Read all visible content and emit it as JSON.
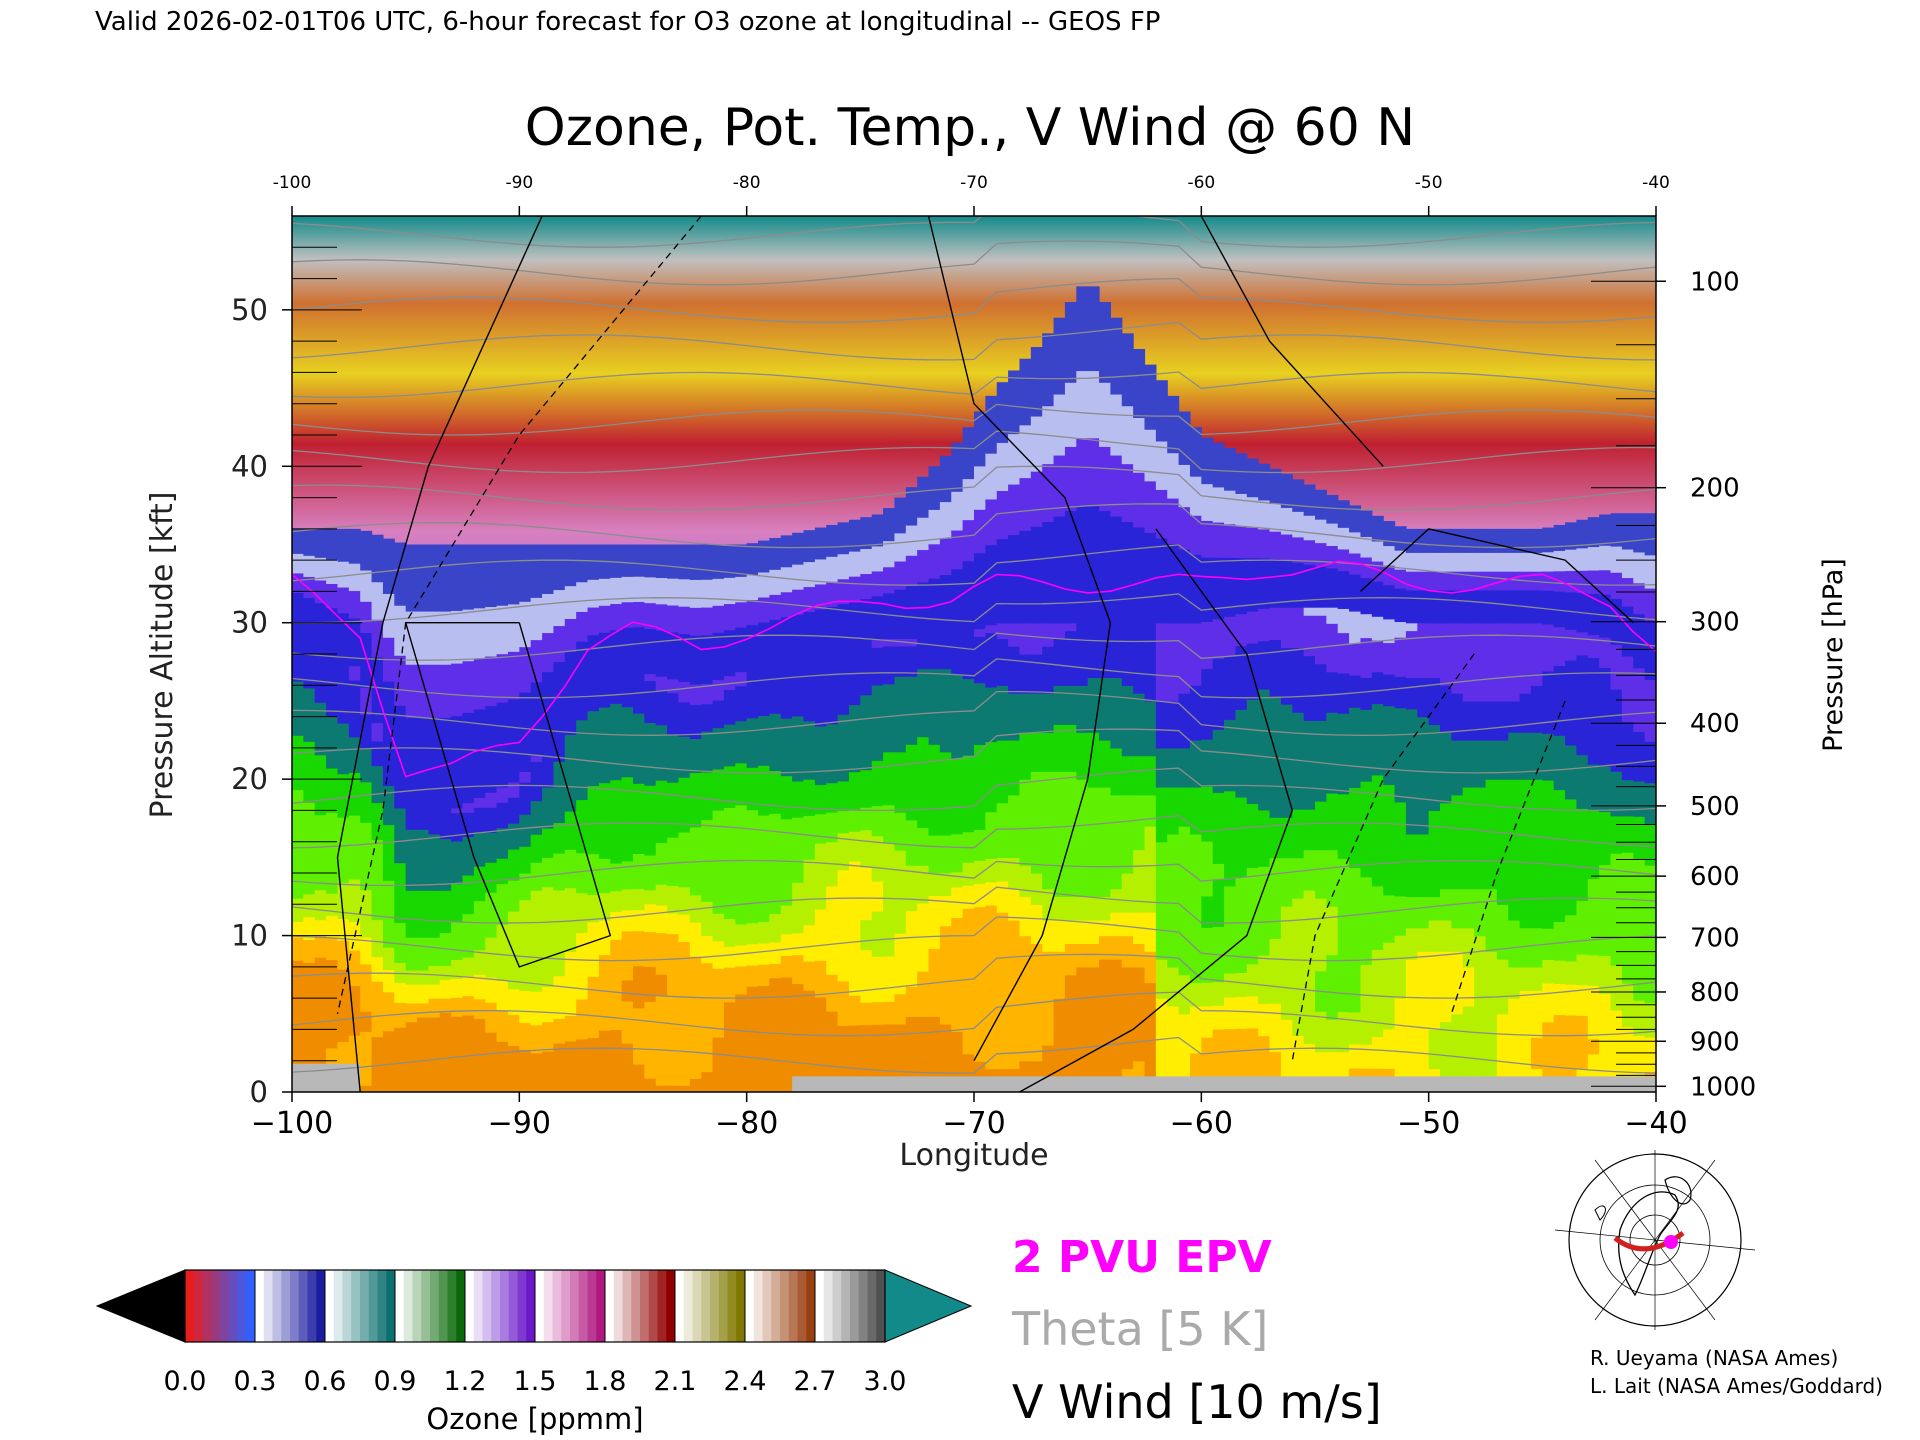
{
  "header": {
    "valid_line": "Valid 2026-02-01T06 UTC, 6-hour forecast for O3 ozone at longitudinal -- GEOS FP"
  },
  "chart_data": {
    "type": "heatmap",
    "title": "Ozone, Pot. Temp., V Wind @ 60 N",
    "xlabel": "Longitude",
    "ylabel": "Pressure Altitude [kft]",
    "y2label": "Pressure [hPa]",
    "xlim": [
      -100,
      -40
    ],
    "ylim": [
      0,
      56
    ],
    "x_ticks": [
      "−100",
      "−90",
      "−80",
      "−70",
      "−60",
      "−50",
      "−40"
    ],
    "x_ticks_top": [
      "-100",
      "-90",
      "-80",
      "-70",
      "-60",
      "-50",
      "-40"
    ],
    "y_ticks": [
      "0",
      "10",
      "20",
      "30",
      "40",
      "50"
    ],
    "pressure_ticks": [
      {
        "hpa": 100,
        "label": "100"
      },
      {
        "hpa": 200,
        "label": "200"
      },
      {
        "hpa": 300,
        "label": "300"
      },
      {
        "hpa": 400,
        "label": "400"
      },
      {
        "hpa": 500,
        "label": "500"
      },
      {
        "hpa": 600,
        "label": "600"
      },
      {
        "hpa": 700,
        "label": "700"
      },
      {
        "hpa": 800,
        "label": "800"
      },
      {
        "hpa": 900,
        "label": "900"
      },
      {
        "hpa": 1000,
        "label": "1000"
      }
    ],
    "colorbar": {
      "label": "Ozone [ppmm]",
      "min": 0.0,
      "max": 3.0,
      "tick_labels": [
        "0.0",
        "0.3",
        "0.6",
        "0.9",
        "1.2",
        "1.5",
        "1.8",
        "2.1",
        "2.4",
        "2.7",
        "3.0"
      ],
      "bands": [
        {
          "from": "#e81e1e",
          "to": "#3060ff"
        },
        {
          "from": "#ffffff",
          "to": "#1c1ca0"
        },
        {
          "from": "#ffffff",
          "to": "#0d7070"
        },
        {
          "from": "#ffffff",
          "to": "#0a6a0a"
        },
        {
          "from": "#ffffff",
          "to": "#6a18c8"
        },
        {
          "from": "#ffffff",
          "to": "#b01880"
        },
        {
          "from": "#ffffff",
          "to": "#900000"
        },
        {
          "from": "#ffffff",
          "to": "#807800"
        },
        {
          "from": "#ffffff",
          "to": "#9a4010"
        },
        {
          "from": "#ffffff",
          "to": "#505050"
        }
      ],
      "low_color": "#000000",
      "high_color": "#138a8a"
    },
    "ozone_levels": [
      {
        "from": 0.0,
        "to": 0.04,
        "color": "#f08c00"
      },
      {
        "from": 0.04,
        "to": 0.06,
        "color": "#ffb400"
      },
      {
        "from": 0.06,
        "to": 0.08,
        "color": "#ffee00"
      },
      {
        "from": 0.08,
        "to": 0.1,
        "color": "#b4f000"
      },
      {
        "from": 0.1,
        "to": 0.13,
        "color": "#5ef000"
      },
      {
        "from": 0.13,
        "to": 0.17,
        "color": "#18d800"
      },
      {
        "from": 0.17,
        "to": 0.22,
        "color": "#0c7a70"
      },
      {
        "from": 0.22,
        "to": 0.26,
        "color": "#2a24d8"
      },
      {
        "from": 0.26,
        "to": 0.3,
        "color": "#5e2ee8"
      },
      {
        "from": 0.3,
        "to": 0.4,
        "color": "#b8bef0"
      },
      {
        "from": 0.4,
        "to": 0.6,
        "color": "#3a44c8"
      },
      {
        "from": 0.6,
        "to": 0.9,
        "color": "#7cd8d0"
      },
      {
        "from": 0.9,
        "to": 1.2,
        "color": "#2a8a2a"
      },
      {
        "from": 1.2,
        "to": 1.5,
        "color": "#9c5ce0"
      },
      {
        "from": 1.5,
        "to": 1.8,
        "color": "#d880c0"
      },
      {
        "from": 1.8,
        "to": 2.1,
        "color": "#c02030"
      },
      {
        "from": 2.1,
        "to": 2.4,
        "color": "#e8d020"
      },
      {
        "from": 2.4,
        "to": 2.7,
        "color": "#d07030"
      },
      {
        "from": 2.7,
        "to": 3.0,
        "color": "#a0a0a0"
      },
      {
        "from": 3.0,
        "to": 99,
        "color": "#138a8a"
      }
    ],
    "ozone_profile": {
      "x": [
        -100,
        -97,
        -95,
        -93,
        -90,
        -87,
        -85,
        -82,
        -80,
        -77,
        -74,
        -71,
        -69,
        -67,
        -65,
        -63,
        -60,
        -57,
        -54,
        -51,
        -48,
        -45,
        -42,
        -40
      ],
      "tropopause_kft": [
        30,
        27,
        18,
        18,
        20,
        26,
        27,
        26,
        27,
        28,
        29,
        29,
        30,
        30,
        30,
        30,
        30,
        31,
        31,
        30,
        30,
        30,
        29,
        26
      ],
      "stratosphere_kft": [
        36,
        36,
        35,
        35,
        35,
        35,
        35,
        35,
        35,
        36,
        37,
        41,
        45,
        48,
        52,
        48,
        42,
        40,
        38,
        36,
        36,
        36,
        37,
        37
      ]
    },
    "legend": [
      {
        "label": "2 PVU EPV",
        "color": "#ff00ff"
      },
      {
        "label": "Theta [5 K]",
        "color": "#aaaaaa"
      },
      {
        "label": "V Wind [10 m/s]",
        "color": "#000000"
      }
    ],
    "annotations": [
      "R. Ueyama (NASA Ames)",
      "L. Lait (NASA Ames/Goddard)"
    ]
  }
}
